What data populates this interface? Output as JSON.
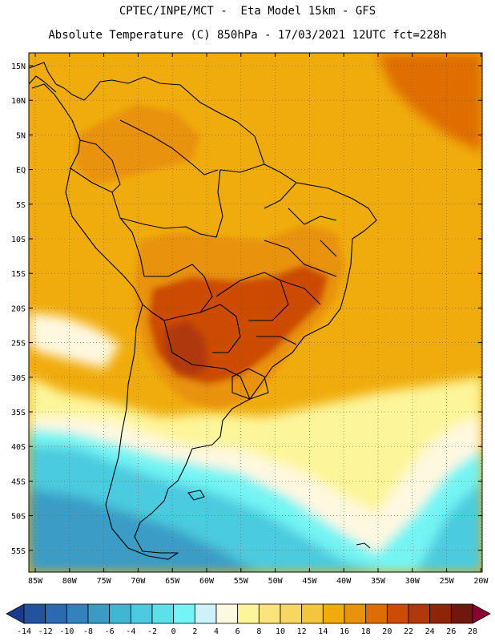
{
  "header": {
    "line1": "CPTEC/INPE/MCT -  Eta Model 15km - GFS",
    "line2": "Absolute Temperature (C) 850hPa - 17/03/2021 12UTC fct=228h"
  },
  "axes": {
    "lat_labels": [
      "15N",
      "10N",
      "5N",
      "EQ",
      "5S",
      "10S",
      "15S",
      "20S",
      "25S",
      "30S",
      "35S",
      "40S",
      "45S",
      "50S",
      "55S"
    ],
    "lon_labels": [
      "85W",
      "80W",
      "75W",
      "70W",
      "65W",
      "60W",
      "55W",
      "50W",
      "45W",
      "40W",
      "35W",
      "30W",
      "25W",
      "20W"
    ]
  },
  "colorbar": {
    "labels": [
      "-14",
      "-12",
      "-10",
      "-8",
      "-6",
      "-4",
      "-2",
      "0",
      "2",
      "4",
      "6",
      "8",
      "10",
      "12",
      "14",
      "16",
      "18",
      "20",
      "22",
      "24",
      "26",
      "28"
    ],
    "colors": [
      "#1c3a8c",
      "#24539e",
      "#2b6ab0",
      "#3482bd",
      "#3a9cc6",
      "#40b6d2",
      "#4ccbdf",
      "#5ee0ea",
      "#74f4f4",
      "#cef2fa",
      "#fff8e0",
      "#fdf59a",
      "#fbe57a",
      "#f8d760",
      "#f4c53e",
      "#f0ac0c",
      "#e9920e",
      "#df6d05",
      "#cc4c05",
      "#b03809",
      "#8e2408",
      "#6e1810",
      "#8a0032"
    ]
  },
  "map_colors": {
    "ocean_warm": "#f0ac0c",
    "land_warm": "#e9920e",
    "hot_core": "#cc4c05",
    "hottest": "#b03809",
    "ne_warm": "#df6d05",
    "cool_band": "#fdf59a",
    "pale": "#fff8e0",
    "cold": "#4ccbdf",
    "colder": "#3a9cc6",
    "cyan_light": "#74f4f4"
  }
}
